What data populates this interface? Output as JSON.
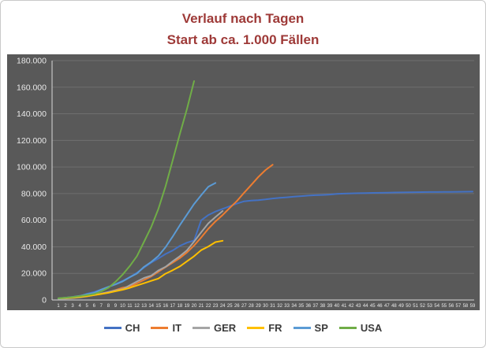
{
  "colors": {
    "title": "#9e3a38",
    "background": "#ffffff",
    "frame_border": "#c9c9c9",
    "plot_bg": "#595959",
    "grid": "#6f6f6f",
    "axis_line": "#d9d9d9",
    "axis_text": "#e9e9e9",
    "legend_text": "#3b3b3b"
  },
  "chart_data": {
    "type": "line",
    "title": "Verlauf nach Tagen",
    "subtitle": "Start ab ca. 1.000 Fällen",
    "xlabel": "",
    "ylabel": "",
    "ylim": [
      0,
      180000
    ],
    "y_tick_step": 20000,
    "y_tick_labels": [
      "0",
      "20.000",
      "40.000",
      "60.000",
      "80.000",
      "100.000",
      "120.000",
      "140.000",
      "160.000",
      "180.000"
    ],
    "x_tick_labels": [
      "1",
      "2",
      "3",
      "4",
      "5",
      "6",
      "7",
      "8",
      "9",
      "10",
      "11",
      "12",
      "13",
      "14",
      "15",
      "16",
      "17",
      "18",
      "19",
      "20",
      "21",
      "22",
      "23",
      "24",
      "25",
      "26",
      "27",
      "28",
      "29",
      "30",
      "31",
      "32",
      "33",
      "34",
      "35",
      "36",
      "37",
      "38",
      "39",
      "40",
      "41",
      "42",
      "43",
      "44",
      "45",
      "46",
      "47",
      "48",
      "49",
      "50",
      "51",
      "52",
      "53",
      "54",
      "55",
      "56",
      "57",
      "58",
      "59"
    ],
    "grid": true,
    "legend_position": "bottom",
    "series": [
      {
        "name": "CH",
        "color": "#4472C4",
        "values": [
          1000,
          1300,
          2000,
          2800,
          4600,
          6000,
          7800,
          9800,
          11900,
          14400,
          17200,
          20500,
          24400,
          28100,
          31200,
          34600,
          37200,
          40600,
          43100,
          44700,
          59900,
          63900,
          66500,
          68500,
          70500,
          72500,
          74200,
          74700,
          75100,
          75600,
          76300,
          76800,
          77200,
          77700,
          78100,
          78500,
          78800,
          79000,
          79300,
          79800,
          80000,
          80150,
          80300,
          80400,
          80500,
          80600,
          80700,
          80800,
          80900,
          81000,
          81050,
          81100,
          81150,
          81200,
          81250,
          81300,
          81350,
          81400,
          81450
        ]
      },
      {
        "name": "IT",
        "color": "#ED7D31",
        "values": [
          1100,
          1700,
          2000,
          2500,
          3100,
          3900,
          4600,
          5900,
          7400,
          9200,
          10100,
          12500,
          15100,
          17700,
          21200,
          24700,
          28000,
          31500,
          35700,
          41000,
          47000,
          53600,
          59100,
          63900,
          69200,
          74400,
          80600,
          86500,
          92500,
          97700,
          101700
        ]
      },
      {
        "name": "GER",
        "color": "#A5A5A5",
        "values": [
          1000,
          1100,
          1500,
          2000,
          2700,
          3700,
          4800,
          6000,
          7200,
          8200,
          11000,
          13900,
          16600,
          18300,
          22200,
          24900,
          29100,
          32900,
          37300,
          43900,
          50900,
          57700,
          62400,
          66900
        ]
      },
      {
        "name": "FR",
        "color": "#FFC000",
        "values": [
          1100,
          1400,
          1800,
          2300,
          2900,
          3700,
          4500,
          5400,
          6600,
          7700,
          9100,
          10900,
          12600,
          14400,
          16100,
          19800,
          22300,
          25200,
          29100,
          32900,
          37500,
          40200,
          43500,
          44550
        ]
      },
      {
        "name": "SP",
        "color": "#5B9BD5",
        "values": [
          1200,
          1700,
          2300,
          3100,
          4300,
          5300,
          7800,
          9900,
          11700,
          14000,
          17100,
          19900,
          24900,
          28600,
          33100,
          39700,
          47600,
          56200,
          64100,
          72200,
          78800,
          85200,
          88000
        ]
      },
      {
        "name": "USA",
        "color": "#70AD47",
        "values": [
          1300,
          1700,
          2200,
          2900,
          3600,
          4500,
          6400,
          9200,
          13700,
          19100,
          25500,
          33000,
          43800,
          54900,
          68400,
          85400,
          104800,
          124700,
          143500,
          164600
        ]
      }
    ]
  }
}
